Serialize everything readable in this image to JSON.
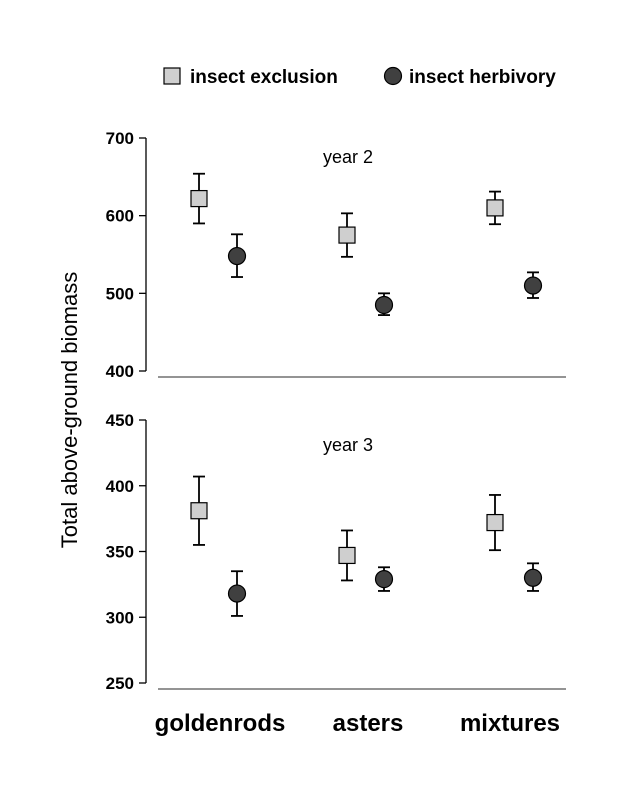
{
  "legend": {
    "square_label": "insect exclusion",
    "circle_label": "insect herbivory"
  },
  "ylabel": "Total above-ground biomass",
  "categories": [
    "goldenrods",
    "asters",
    "mixtures"
  ],
  "colors": {
    "square_fill": "#cfcfcf",
    "circle_fill": "#404040",
    "axis": "#000000",
    "baseline": "#555555"
  },
  "chart_data": [
    {
      "type": "scatter",
      "title": "year 2",
      "ylim": [
        400,
        700
      ],
      "yticks": [
        "700",
        "600",
        "500",
        "400"
      ],
      "ytick_values": [
        700,
        600,
        500,
        400
      ],
      "categories": [
        "goldenrods",
        "asters",
        "mixtures"
      ],
      "series": [
        {
          "name": "insect exclusion",
          "marker": "square",
          "values": [
            622,
            575,
            610
          ],
          "err_low": [
            590,
            547,
            589
          ],
          "err_high": [
            654,
            603,
            631
          ]
        },
        {
          "name": "insect herbivory",
          "marker": "circle",
          "values": [
            548,
            485,
            510
          ],
          "err_low": [
            521,
            472,
            494
          ],
          "err_high": [
            576,
            500,
            527
          ]
        }
      ]
    },
    {
      "type": "scatter",
      "title": "year 3",
      "ylim": [
        250,
        450
      ],
      "yticks": [
        "450",
        "400",
        "350",
        "300",
        "250"
      ],
      "ytick_values": [
        450,
        400,
        350,
        300,
        250
      ],
      "categories": [
        "goldenrods",
        "asters",
        "mixtures"
      ],
      "series": [
        {
          "name": "insect exclusion",
          "marker": "square",
          "values": [
            381,
            347,
            372
          ],
          "err_low": [
            355,
            328,
            351
          ],
          "err_high": [
            407,
            366,
            393
          ]
        },
        {
          "name": "insect herbivory",
          "marker": "circle",
          "values": [
            318,
            329,
            330
          ],
          "err_low": [
            301,
            320,
            320
          ],
          "err_high": [
            335,
            338,
            341
          ]
        }
      ]
    }
  ]
}
